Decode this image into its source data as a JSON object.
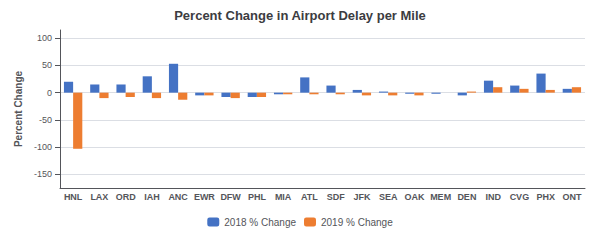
{
  "chart_data": {
    "type": "bar",
    "title": "Percent Change in Airport Delay per Mile",
    "ylabel": "Percent Change",
    "categories": [
      "HNL",
      "LAX",
      "ORD",
      "IAH",
      "ANC",
      "EWR",
      "DFW",
      "PHL",
      "MIA",
      "ATL",
      "SDF",
      "JFK",
      "SEA",
      "OAK",
      "MEM",
      "DEN",
      "IND",
      "CVG",
      "PHX",
      "ONT"
    ],
    "series": [
      {
        "name": "2018 % Change",
        "color": "#4472C4",
        "values": [
          20,
          15,
          15,
          30,
          53,
          -5,
          -8,
          -8,
          -3,
          28,
          13,
          5,
          2,
          -2,
          -2,
          -5,
          22,
          13,
          35,
          7
        ]
      },
      {
        "name": "2019 % Change",
        "color": "#ED7D31",
        "values": [
          -103,
          -10,
          -8,
          -10,
          -13,
          -5,
          -10,
          -8,
          -3,
          -3,
          -3,
          -5,
          -5,
          -5,
          null,
          2,
          10,
          7,
          5,
          10
        ]
      }
    ],
    "ylim": [
      -175,
      115
    ],
    "yticks": [
      -150,
      -100,
      -50,
      0,
      50,
      100
    ],
    "grid": true,
    "legend": "bottom"
  }
}
